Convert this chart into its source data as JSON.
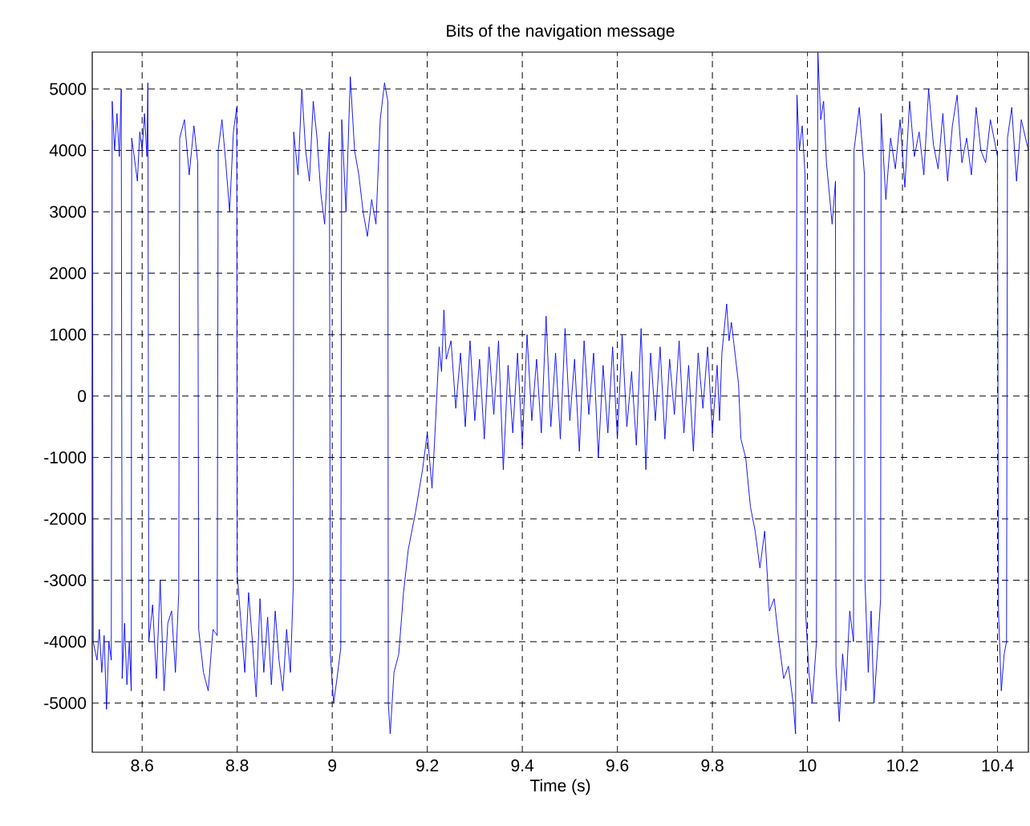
{
  "chart_data": {
    "type": "line",
    "title": "Bits of the navigation message",
    "xlabel": "Time (s)",
    "xlim": [
      8.495,
      10.465
    ],
    "ylim": [
      -5800,
      5600
    ],
    "xticks": [
      8.6,
      8.8,
      9,
      9.2,
      9.4,
      9.6,
      9.8,
      10,
      10.2,
      10.4
    ],
    "yticks": [
      -5000,
      -4000,
      -3000,
      -2000,
      -1000,
      0,
      1000,
      2000,
      3000,
      4000,
      5000
    ],
    "grid": true,
    "series": [
      {
        "color": "#0000ff",
        "x": [
          8.495,
          8.497,
          8.505,
          8.51,
          8.515,
          8.52,
          8.525,
          8.53,
          8.535,
          8.537,
          8.542,
          8.547,
          8.552,
          8.556,
          8.558,
          8.563,
          8.568,
          8.573,
          8.577,
          8.578,
          8.585,
          8.59,
          8.595,
          8.6,
          8.605,
          8.61,
          8.612,
          8.614,
          8.622,
          8.63,
          8.638,
          8.646,
          8.654,
          8.662,
          8.67,
          8.677,
          8.679,
          8.689,
          8.699,
          8.709,
          8.717,
          8.719,
          8.729,
          8.739,
          8.749,
          8.758,
          8.76,
          8.768,
          8.776,
          8.784,
          8.792,
          8.799,
          8.8,
          8.808,
          8.816,
          8.824,
          8.832,
          8.84,
          8.848,
          8.856,
          8.864,
          8.872,
          8.88,
          8.888,
          8.896,
          8.904,
          8.912,
          8.918,
          8.919,
          8.928,
          8.936,
          8.944,
          8.952,
          8.96,
          8.968,
          8.976,
          8.984,
          8.994,
          8.996,
          9.003,
          9.01,
          9.018,
          9.02,
          9.029,
          9.038,
          9.047,
          9.056,
          9.065,
          9.074,
          9.083,
          9.092,
          9.101,
          9.11,
          9.117,
          9.118,
          9.122,
          9.13,
          9.14,
          9.15,
          9.16,
          9.175,
          9.19,
          9.2,
          9.21,
          9.215,
          9.225,
          9.23,
          9.235,
          9.24,
          9.25,
          9.26,
          9.27,
          9.28,
          9.29,
          9.3,
          9.31,
          9.32,
          9.33,
          9.34,
          9.35,
          9.36,
          9.37,
          9.38,
          9.39,
          9.4,
          9.41,
          9.42,
          9.43,
          9.44,
          9.45,
          9.46,
          9.47,
          9.48,
          9.49,
          9.5,
          9.51,
          9.52,
          9.53,
          9.54,
          9.55,
          9.56,
          9.57,
          9.58,
          9.59,
          9.6,
          9.61,
          9.62,
          9.63,
          9.64,
          9.65,
          9.66,
          9.67,
          9.68,
          9.69,
          9.7,
          9.71,
          9.72,
          9.73,
          9.74,
          9.75,
          9.76,
          9.77,
          9.78,
          9.79,
          9.8,
          9.81,
          9.815,
          9.82,
          9.83,
          9.835,
          9.84,
          9.855,
          9.86,
          9.87,
          9.88,
          9.89,
          9.9,
          9.91,
          9.92,
          9.93,
          9.94,
          9.95,
          9.96,
          9.97,
          9.975,
          9.978,
          9.983,
          9.989,
          9.995,
          9.996,
          10.003,
          10.01,
          10.019,
          10.022,
          10.028,
          10.034,
          10.04,
          10.046,
          10.052,
          10.059,
          10.06,
          10.067,
          10.074,
          10.081,
          10.089,
          10.097,
          10.098,
          10.109,
          10.12,
          10.121,
          10.128,
          10.134,
          10.14,
          10.147,
          10.154,
          10.155,
          10.165,
          10.175,
          10.185,
          10.195,
          10.205,
          10.215,
          10.225,
          10.235,
          10.245,
          10.255,
          10.265,
          10.275,
          10.285,
          10.295,
          10.305,
          10.315,
          10.325,
          10.335,
          10.345,
          10.355,
          10.365,
          10.375,
          10.385,
          10.395,
          10.4,
          10.402,
          10.408,
          10.414,
          10.419,
          10.421,
          10.43,
          10.44,
          10.45,
          10.465
        ],
        "values": [
          4500,
          -4000,
          -4300,
          -3800,
          -4500,
          -3900,
          -5100,
          -4000,
          -4300,
          4800,
          4000,
          4600,
          3900,
          5000,
          -4600,
          -3700,
          -4700,
          -4000,
          -4800,
          4200,
          3800,
          3500,
          4300,
          4000,
          4600,
          3900,
          5100,
          -4000,
          -3400,
          -4600,
          -3000,
          -4800,
          -3700,
          -3500,
          -4500,
          -3200,
          4200,
          4500,
          3600,
          4400,
          3800,
          -3800,
          -4500,
          -4800,
          -3800,
          -3900,
          4000,
          4500,
          3800,
          3000,
          4300,
          4700,
          -2900,
          -3700,
          -4500,
          -3200,
          -4000,
          -4900,
          -3300,
          -4500,
          -3600,
          -4700,
          -3500,
          -4300,
          -4800,
          -3800,
          -4500,
          -3100,
          4300,
          3600,
          5000,
          4000,
          3500,
          4800,
          4200,
          3300,
          2800,
          4300,
          -4200,
          -5000,
          -4600,
          -4100,
          4500,
          3000,
          5200,
          4000,
          3600,
          3000,
          2600,
          3200,
          2800,
          4500,
          5100,
          4800,
          -5000,
          -5500,
          -4500,
          -4200,
          -3200,
          -2500,
          -1900,
          -1200,
          -600,
          -1500,
          -800,
          800,
          400,
          1400,
          600,
          900,
          -200,
          700,
          -500,
          900,
          -400,
          600,
          -700,
          800,
          -300,
          900,
          -1200,
          500,
          -600,
          700,
          -800,
          1000,
          -400,
          600,
          -600,
          1300,
          -500,
          700,
          -700,
          1100,
          -400,
          600,
          -900,
          900,
          -300,
          700,
          -1000,
          500,
          -600,
          800,
          -700,
          1000,
          -500,
          400,
          -800,
          1100,
          -1200,
          700,
          -400,
          800,
          -700,
          600,
          -300,
          900,
          -600,
          500,
          -900,
          700,
          -200,
          800,
          -600,
          500,
          -400,
          700,
          1500,
          900,
          1200,
          200,
          -700,
          -1000,
          -1800,
          -2200,
          -2800,
          -2200,
          -3500,
          -3300,
          -4000,
          -4600,
          -4400,
          -5000,
          -5500,
          4900,
          4000,
          4400,
          3600,
          -3500,
          -4500,
          -5000,
          -4000,
          5600,
          4500,
          4800,
          3800,
          3300,
          2800,
          3500,
          -4400,
          -5300,
          -4200,
          -4800,
          -3500,
          -4000,
          4000,
          4700,
          3600,
          -3000,
          -4500,
          -3500,
          -5000,
          -4200,
          -3300,
          4600,
          3200,
          4200,
          3700,
          4500,
          3400,
          4800,
          3900,
          4300,
          3600,
          5000,
          4100,
          3700,
          4600,
          3500,
          4400,
          4900,
          3800,
          4200,
          3600,
          4700,
          4000,
          3800,
          4500,
          4100,
          3900,
          -3500,
          -4800,
          -4200,
          -4000,
          4200,
          4700,
          3500,
          4500,
          4000
        ]
      }
    ]
  }
}
